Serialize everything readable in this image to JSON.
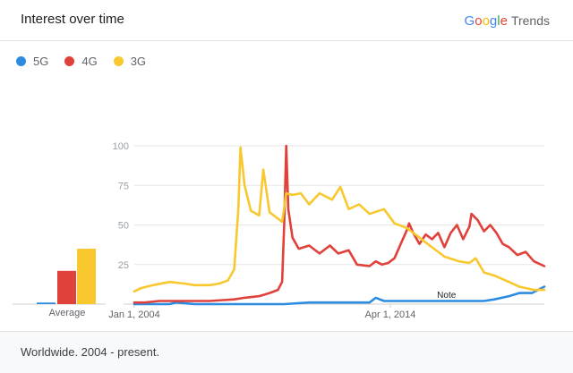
{
  "header": {
    "title": "Interest over time",
    "brand_letters": [
      {
        "ch": "G",
        "color": "#4285F4"
      },
      {
        "ch": "o",
        "color": "#EA4335"
      },
      {
        "ch": "o",
        "color": "#FBBC05"
      },
      {
        "ch": "g",
        "color": "#4285F4"
      },
      {
        "ch": "l",
        "color": "#34A853"
      },
      {
        "ch": "e",
        "color": "#EA4335"
      }
    ],
    "brand_suffix": "Trends"
  },
  "legend": [
    {
      "label": "5G",
      "color": "#2D8CE2"
    },
    {
      "label": "4G",
      "color": "#E0413A"
    },
    {
      "label": "3G",
      "color": "#F8C82E"
    }
  ],
  "footer": {
    "text": "Worldwide. 2004 - present."
  },
  "chart_data": {
    "type": "line",
    "title": "",
    "xlabel": "",
    "ylabel": "",
    "ylim": [
      0,
      100
    ],
    "y_ticks": [
      25,
      50,
      75,
      100
    ],
    "x_tick_labels": [
      "Jan 1, 2004",
      "Apr 1, 2014"
    ],
    "x_tick_dates": [
      "2004-01",
      "2014-04"
    ],
    "x_range": [
      "2004-01",
      "2020-06"
    ],
    "grid": true,
    "legend_position": "top-left",
    "average_label": "Average",
    "average": [
      {
        "name": "5G",
        "value": 1
      },
      {
        "name": "4G",
        "value": 21
      },
      {
        "name": "3G",
        "value": 35
      }
    ],
    "annotation": {
      "text": "Note",
      "date": "2016-07"
    },
    "series": [
      {
        "name": "5G",
        "color": "#2D8CE2",
        "points": [
          [
            "2004-01",
            0
          ],
          [
            "2004-06",
            0
          ],
          [
            "2005-06",
            0
          ],
          [
            "2005-09",
            1
          ],
          [
            "2006-06",
            0
          ],
          [
            "2008-01",
            0
          ],
          [
            "2010-01",
            0
          ],
          [
            "2011-01",
            1
          ],
          [
            "2011-06",
            1
          ],
          [
            "2012-06",
            1
          ],
          [
            "2013-06",
            1
          ],
          [
            "2013-09",
            4
          ],
          [
            "2014-01",
            2
          ],
          [
            "2015-01",
            2
          ],
          [
            "2016-01",
            2
          ],
          [
            "2017-01",
            2
          ],
          [
            "2018-01",
            2
          ],
          [
            "2018-06",
            3
          ],
          [
            "2019-01",
            5
          ],
          [
            "2019-06",
            7
          ],
          [
            "2019-12",
            7
          ],
          [
            "2020-06",
            11
          ]
        ]
      },
      {
        "name": "4G",
        "color": "#E0413A",
        "points": [
          [
            "2004-01",
            1
          ],
          [
            "2004-06",
            1
          ],
          [
            "2005-01",
            2
          ],
          [
            "2006-01",
            2
          ],
          [
            "2007-01",
            2
          ],
          [
            "2008-01",
            3
          ],
          [
            "2008-06",
            4
          ],
          [
            "2009-01",
            5
          ],
          [
            "2009-06",
            7
          ],
          [
            "2009-10",
            9
          ],
          [
            "2009-12",
            14
          ],
          [
            "2010-01",
            50
          ],
          [
            "2010-02",
            100
          ],
          [
            "2010-03",
            60
          ],
          [
            "2010-05",
            42
          ],
          [
            "2010-08",
            35
          ],
          [
            "2011-01",
            37
          ],
          [
            "2011-06",
            32
          ],
          [
            "2011-11",
            37
          ],
          [
            "2012-03",
            32
          ],
          [
            "2012-08",
            34
          ],
          [
            "2012-12",
            25
          ],
          [
            "2013-06",
            24
          ],
          [
            "2013-09",
            27
          ],
          [
            "2013-12",
            25
          ],
          [
            "2014-03",
            26
          ],
          [
            "2014-06",
            29
          ],
          [
            "2014-09",
            38
          ],
          [
            "2014-12",
            47
          ],
          [
            "2015-01",
            51
          ],
          [
            "2015-03",
            45
          ],
          [
            "2015-06",
            38
          ],
          [
            "2015-09",
            44
          ],
          [
            "2015-12",
            41
          ],
          [
            "2016-03",
            45
          ],
          [
            "2016-06",
            36
          ],
          [
            "2016-09",
            45
          ],
          [
            "2016-12",
            50
          ],
          [
            "2017-03",
            41
          ],
          [
            "2017-06",
            49
          ],
          [
            "2017-07",
            57
          ],
          [
            "2017-10",
            53
          ],
          [
            "2018-01",
            46
          ],
          [
            "2018-04",
            50
          ],
          [
            "2018-07",
            45
          ],
          [
            "2018-10",
            38
          ],
          [
            "2019-01",
            36
          ],
          [
            "2019-05",
            31
          ],
          [
            "2019-09",
            33
          ],
          [
            "2020-01",
            27
          ],
          [
            "2020-06",
            24
          ]
        ]
      },
      {
        "name": "3G",
        "color": "#F8C82E",
        "points": [
          [
            "2004-01",
            8
          ],
          [
            "2004-04",
            10
          ],
          [
            "2004-10",
            12
          ],
          [
            "2005-06",
            14
          ],
          [
            "2006-01",
            13
          ],
          [
            "2006-06",
            12
          ],
          [
            "2007-01",
            12
          ],
          [
            "2007-06",
            13
          ],
          [
            "2007-10",
            15
          ],
          [
            "2008-01",
            22
          ],
          [
            "2008-03",
            60
          ],
          [
            "2008-04",
            99
          ],
          [
            "2008-06",
            75
          ],
          [
            "2008-09",
            59
          ],
          [
            "2009-01",
            56
          ],
          [
            "2009-03",
            85
          ],
          [
            "2009-06",
            58
          ],
          [
            "2009-09",
            55
          ],
          [
            "2009-12",
            52
          ],
          [
            "2010-02",
            70
          ],
          [
            "2010-05",
            69
          ],
          [
            "2010-09",
            70
          ],
          [
            "2011-01",
            63
          ],
          [
            "2011-06",
            70
          ],
          [
            "2011-12",
            66
          ],
          [
            "2012-04",
            74
          ],
          [
            "2012-08",
            60
          ],
          [
            "2013-01",
            63
          ],
          [
            "2013-06",
            57
          ],
          [
            "2014-01",
            60
          ],
          [
            "2014-06",
            51
          ],
          [
            "2014-12",
            48
          ],
          [
            "2015-06",
            42
          ],
          [
            "2016-01",
            35
          ],
          [
            "2016-06",
            30
          ],
          [
            "2017-01",
            27
          ],
          [
            "2017-06",
            26
          ],
          [
            "2017-09",
            29
          ],
          [
            "2018-01",
            20
          ],
          [
            "2018-06",
            18
          ],
          [
            "2019-01",
            14
          ],
          [
            "2019-06",
            11
          ],
          [
            "2020-01",
            9
          ],
          [
            "2020-06",
            9
          ]
        ]
      }
    ]
  }
}
